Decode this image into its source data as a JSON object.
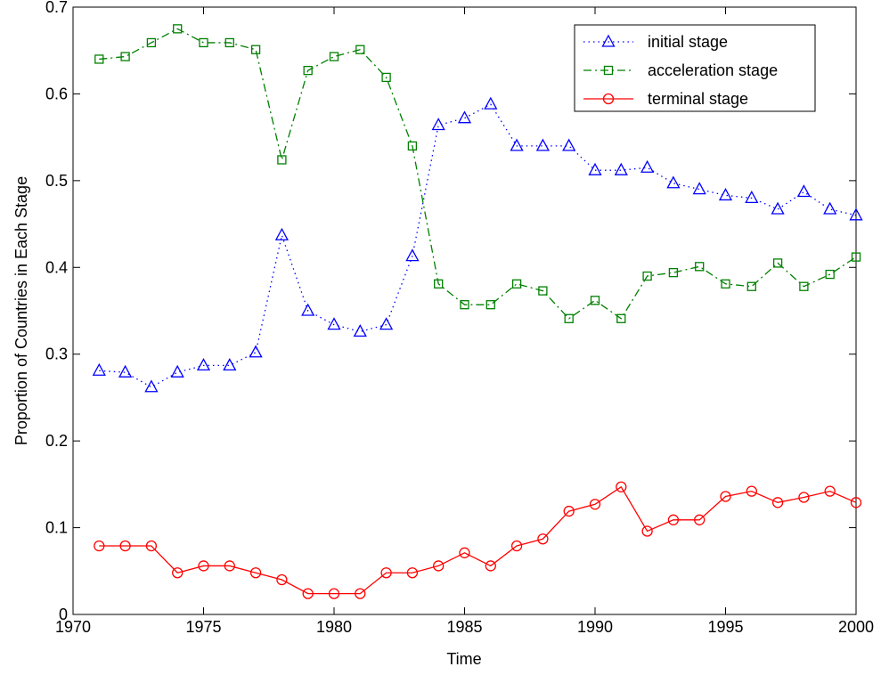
{
  "chart_data": {
    "type": "line",
    "xlabel": "Time",
    "ylabel": "Proportion of Countries in Each Stage",
    "x": [
      1971,
      1972,
      1973,
      1974,
      1975,
      1976,
      1977,
      1978,
      1979,
      1980,
      1981,
      1982,
      1983,
      1984,
      1985,
      1986,
      1987,
      1988,
      1989,
      1990,
      1991,
      1992,
      1993,
      1994,
      1995,
      1996,
      1997,
      1998,
      1999,
      2000
    ],
    "series": [
      {
        "name": "initial stage",
        "color": "#0000ff",
        "linestyle": "dotted",
        "marker": "triangle",
        "values": [
          0.281,
          0.279,
          0.262,
          0.279,
          0.287,
          0.287,
          0.302,
          0.437,
          0.35,
          0.334,
          0.326,
          0.334,
          0.413,
          0.564,
          0.572,
          0.588,
          0.54,
          0.54,
          0.54,
          0.512,
          0.512,
          0.515,
          0.497,
          0.49,
          0.483,
          0.48,
          0.467,
          0.487,
          0.467,
          0.46
        ]
      },
      {
        "name": "acceleration stage",
        "color": "#008000",
        "linestyle": "dashdot",
        "marker": "square",
        "values": [
          0.64,
          0.643,
          0.659,
          0.675,
          0.659,
          0.659,
          0.651,
          0.524,
          0.627,
          0.643,
          0.651,
          0.619,
          0.54,
          0.381,
          0.357,
          0.357,
          0.381,
          0.373,
          0.341,
          0.362,
          0.341,
          0.39,
          0.394,
          0.401,
          0.381,
          0.378,
          0.405,
          0.378,
          0.392,
          0.412
        ]
      },
      {
        "name": "terminal stage",
        "color": "#ff0000",
        "linestyle": "solid",
        "marker": "circle",
        "values": [
          0.079,
          0.079,
          0.079,
          0.048,
          0.056,
          0.056,
          0.048,
          0.04,
          0.024,
          0.024,
          0.024,
          0.048,
          0.048,
          0.056,
          0.071,
          0.056,
          0.079,
          0.087,
          0.119,
          0.127,
          0.147,
          0.096,
          0.109,
          0.109,
          0.136,
          0.142,
          0.129,
          0.135,
          0.142,
          0.129
        ]
      }
    ],
    "xlim": [
      1970,
      2000
    ],
    "xticks": [
      1970,
      1975,
      1980,
      1985,
      1990,
      1995,
      2000
    ],
    "ylim": [
      0,
      0.7
    ],
    "yticks": [
      0,
      0.1,
      0.2,
      0.3,
      0.4,
      0.5,
      0.6,
      0.7
    ],
    "legend": "upper right"
  }
}
